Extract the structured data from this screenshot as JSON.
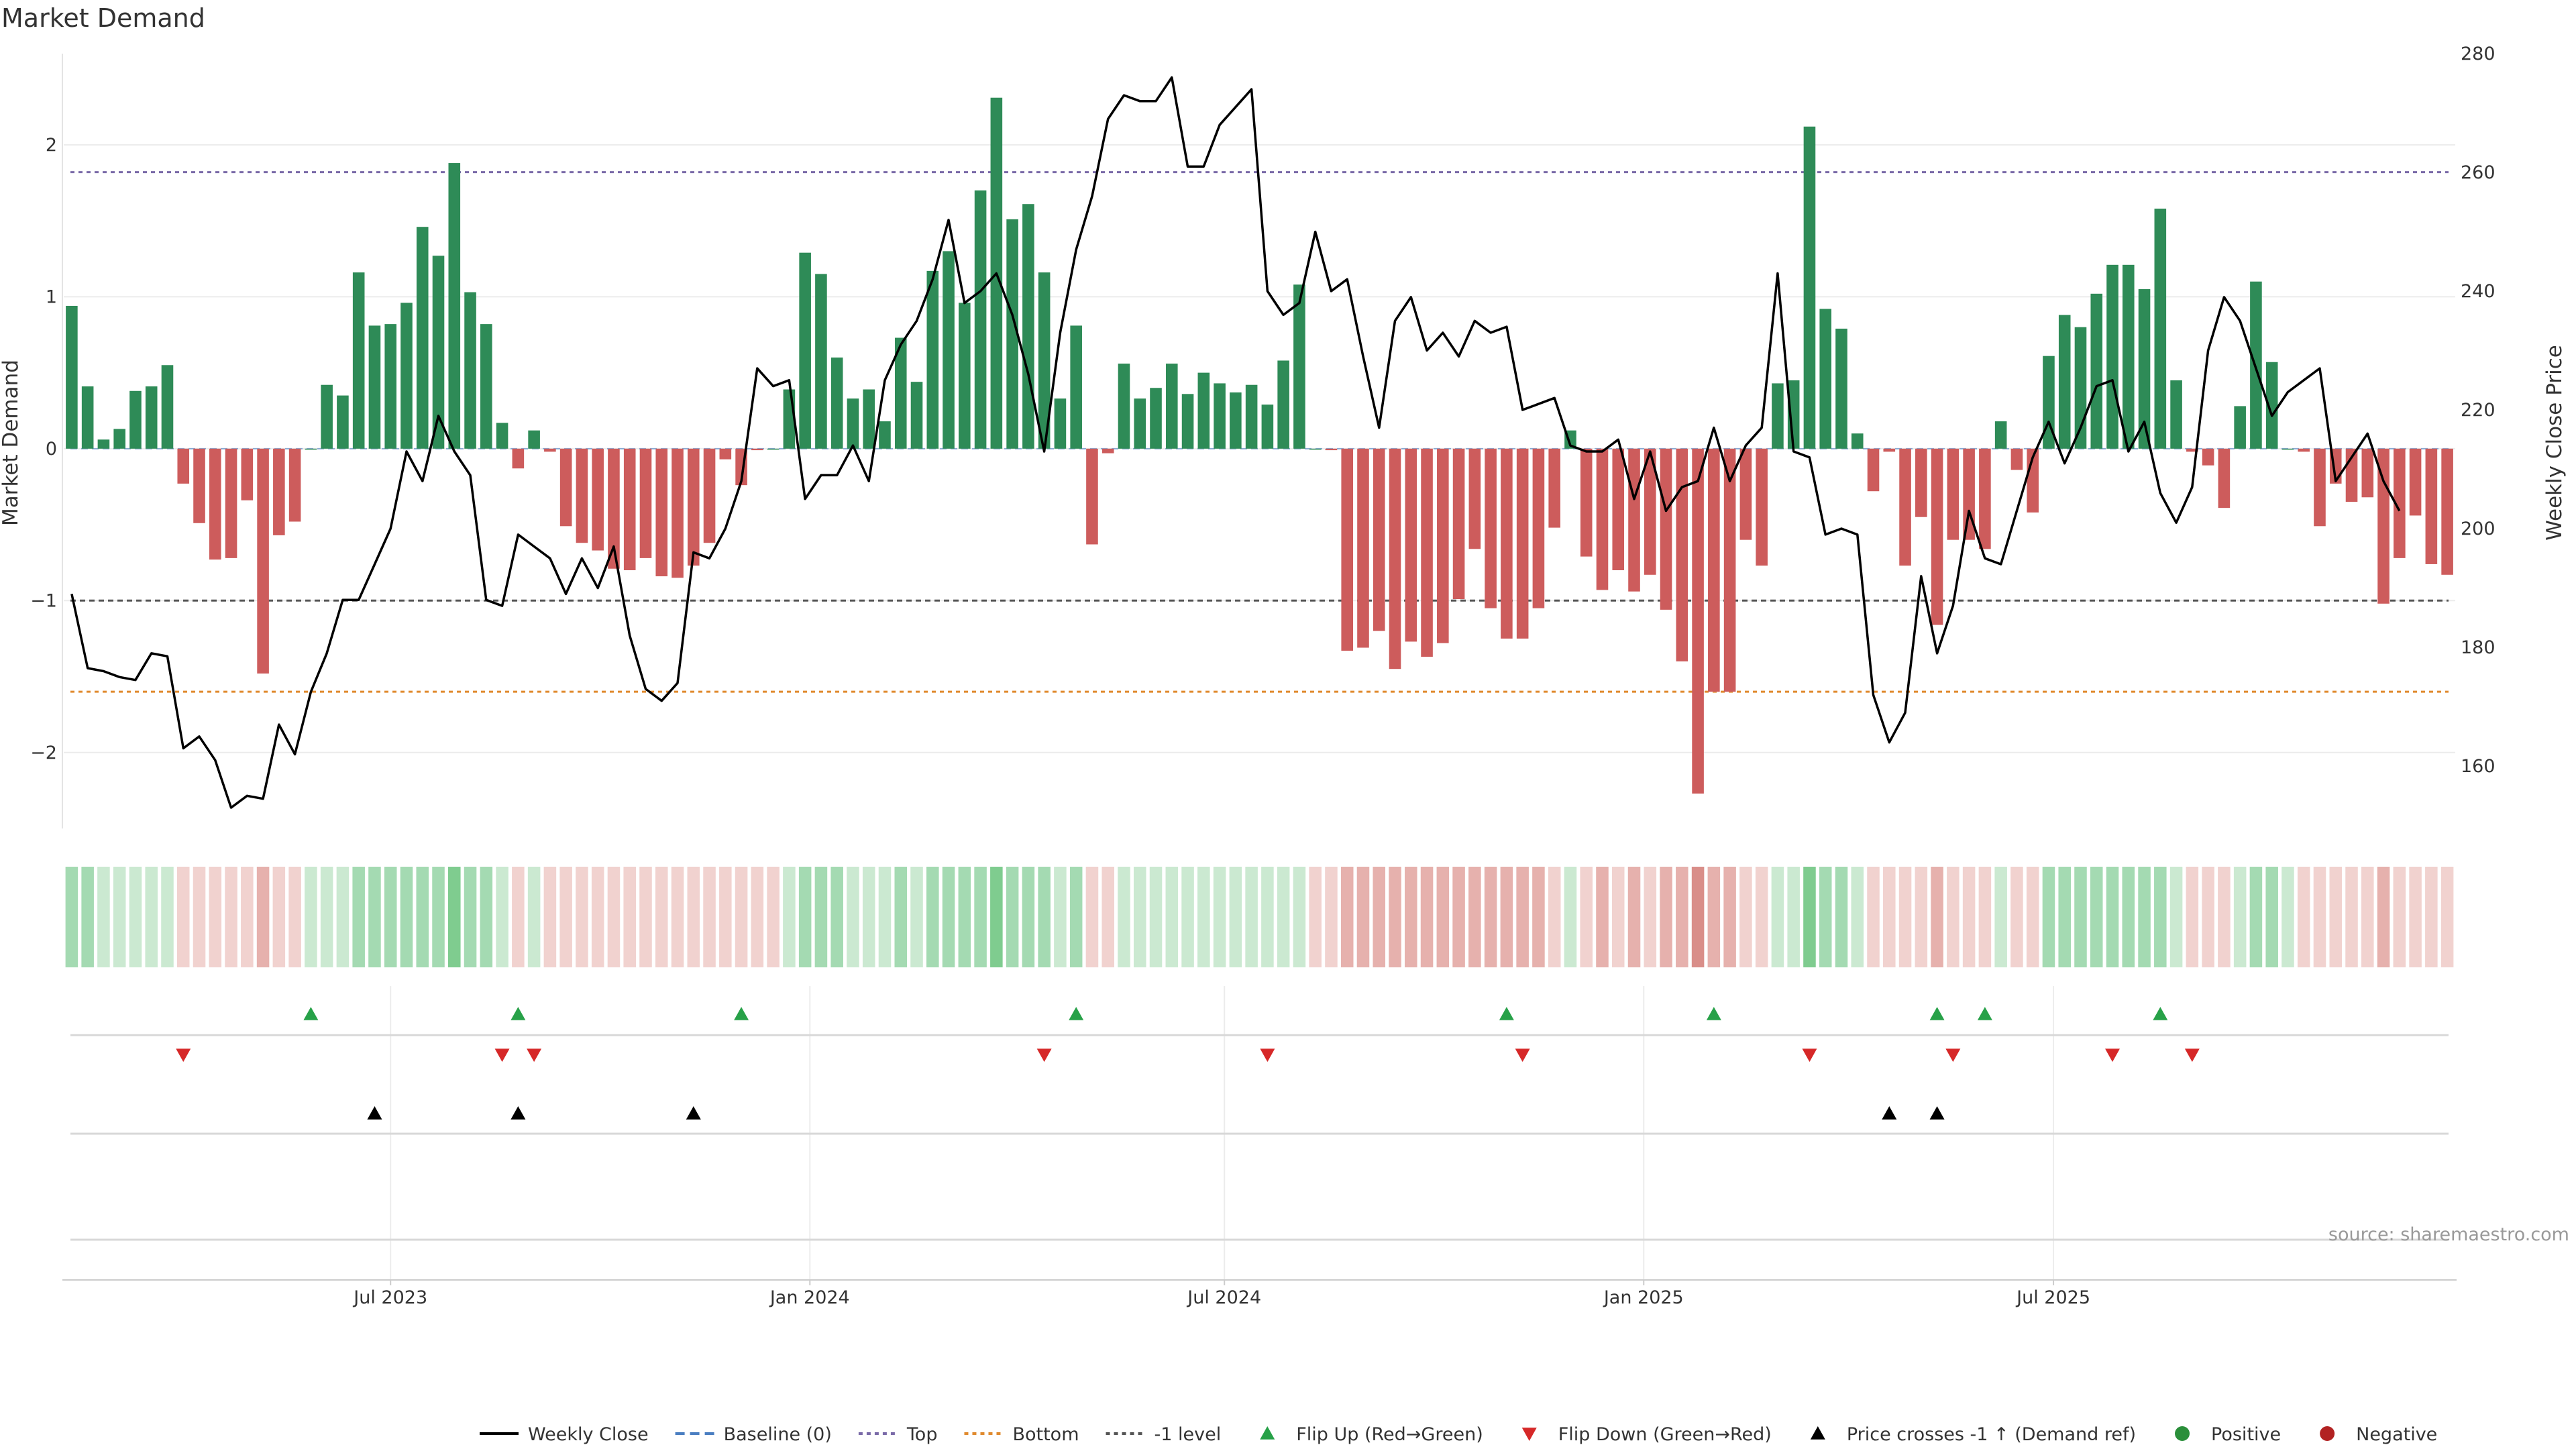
{
  "chart_data": {
    "type": "bar",
    "title": "Market Demand",
    "ylabel": "Market Demand",
    "y2label": "Weekly Close Price",
    "ylim": [
      -2.5,
      2.6
    ],
    "y2lim": [
      149.5,
      280
    ],
    "yticks": [
      2,
      1,
      0,
      -1,
      -2
    ],
    "ytick_labels": [
      "2",
      "1",
      "0",
      "−1",
      "−2"
    ],
    "y2ticks": [
      280,
      260,
      240,
      220,
      200,
      180,
      160
    ],
    "y2tick_labels": [
      "280",
      "260",
      "240",
      "220",
      "200",
      "180",
      "160"
    ],
    "x_tick_labels": [
      "Jul 2023",
      "Jan 2024",
      "Jul 2024",
      "Jan 2025",
      "Jul 2025"
    ],
    "x_tick_index": [
      20.5,
      46.8,
      72.8,
      99.1,
      124.8
    ],
    "reference_lines": {
      "top": 1.82,
      "bottom": -1.6,
      "minus_one": -1.0,
      "baseline": 0
    },
    "demand": [
      0.94,
      0.41,
      0.06,
      0.13,
      0.38,
      0.41,
      0.55,
      -0.23,
      -0.49,
      -0.73,
      -0.72,
      -0.34,
      -1.48,
      -0.57,
      -0.48,
      0.0,
      0.42,
      0.35,
      1.16,
      0.81,
      0.82,
      0.96,
      1.46,
      1.27,
      1.88,
      1.03,
      0.82,
      0.17,
      -0.13,
      0.12,
      -0.02,
      -0.51,
      -0.62,
      -0.67,
      -0.79,
      -0.8,
      -0.72,
      -0.84,
      -0.85,
      -0.77,
      -0.62,
      -0.07,
      -0.24,
      -0.01,
      0.0,
      0.39,
      1.29,
      1.15,
      0.6,
      0.33,
      0.39,
      0.18,
      0.73,
      0.44,
      1.17,
      1.3,
      0.96,
      1.7,
      2.31,
      1.51,
      1.61,
      1.16,
      0.33,
      0.81,
      -0.63,
      -0.03,
      0.56,
      0.33,
      0.4,
      0.56,
      0.36,
      0.5,
      0.43,
      0.37,
      0.42,
      0.29,
      0.58,
      1.08,
      0.0,
      -0.01,
      -1.33,
      -1.31,
      -1.2,
      -1.45,
      -1.27,
      -1.37,
      -1.28,
      -0.99,
      -0.66,
      -1.05,
      -1.25,
      -1.25,
      -1.05,
      -0.52,
      0.12,
      -0.71,
      -0.93,
      -0.8,
      -0.94,
      -0.83,
      -1.06,
      -1.4,
      -2.27,
      -1.6,
      -1.6,
      -0.6,
      -0.77,
      0.43,
      0.45,
      2.12,
      0.92,
      0.79,
      0.1,
      -0.28,
      -0.02,
      -0.77,
      -0.45,
      -1.16,
      -0.6,
      -0.6,
      -0.66,
      0.18,
      -0.14,
      -0.42,
      0.61,
      0.88,
      0.8,
      1.02,
      1.21,
      1.21,
      1.05,
      1.58,
      0.45,
      -0.02,
      -0.11,
      -0.39,
      0.28,
      1.1,
      0.57,
      0.0,
      -0.02,
      -0.51,
      -0.23,
      -0.35,
      -0.32,
      -1.02,
      -0.72,
      -0.44,
      -0.76,
      -0.83
    ],
    "series": [
      {
        "name": "Weekly Close",
        "axis": "right",
        "values": [
          189,
          176.5,
          176,
          175,
          174.5,
          179,
          178.5,
          163,
          165,
          161,
          153,
          155,
          154.5,
          167,
          162,
          172.5,
          179,
          188,
          188,
          194,
          200,
          213,
          208,
          219,
          213,
          209,
          188,
          187,
          199,
          197,
          195,
          189,
          195,
          190,
          197,
          182,
          173,
          171,
          174,
          196,
          195,
          200,
          208,
          227,
          224,
          225,
          205,
          209,
          209,
          214,
          208,
          225,
          231,
          235,
          242,
          252,
          238,
          240,
          243,
          236,
          226,
          213,
          233,
          247,
          256,
          269,
          273,
          272,
          272,
          276,
          261,
          261,
          268,
          271,
          274,
          240,
          236,
          238,
          250,
          240,
          242,
          229,
          217,
          235,
          239,
          230,
          233,
          229,
          235,
          233,
          234,
          220,
          221,
          222,
          214,
          213,
          213,
          215,
          205,
          213,
          203,
          207,
          208,
          217,
          208,
          214,
          217,
          243,
          213,
          212,
          199,
          200,
          199,
          172,
          164,
          169,
          192,
          179,
          187,
          203,
          195,
          194,
          203,
          212,
          218,
          211,
          217,
          224,
          225,
          213,
          218,
          206,
          201,
          207,
          230,
          239,
          235,
          227,
          219,
          223,
          225,
          227,
          208,
          212,
          216,
          208,
          203
        ],
        "color": "#000000"
      }
    ],
    "heat_levels": [
      2,
      2,
      1,
      1,
      1,
      1,
      1,
      -1,
      -1,
      -1,
      -1,
      -1,
      -2,
      -1,
      -1,
      1,
      1,
      1,
      2,
      2,
      2,
      2,
      2,
      2,
      3,
      2,
      2,
      1,
      -1,
      1,
      -1,
      -1,
      -1,
      -1,
      -1,
      -1,
      -1,
      -1,
      -1,
      -1,
      -1,
      -1,
      -1,
      -1,
      -1,
      1,
      2,
      2,
      2,
      1,
      1,
      1,
      2,
      1,
      2,
      2,
      2,
      2,
      3,
      2,
      2,
      2,
      1,
      2,
      -1,
      -1,
      1,
      1,
      1,
      1,
      1,
      1,
      1,
      1,
      1,
      1,
      1,
      1,
      -1,
      -1,
      -2,
      -2,
      -2,
      -2,
      -2,
      -2,
      -2,
      -2,
      -2,
      -2,
      -2,
      -2,
      -2,
      -1,
      1,
      -1,
      -2,
      -1,
      -2,
      -1,
      -2,
      -2,
      -3,
      -2,
      -2,
      -1,
      -1,
      1,
      1,
      3,
      2,
      2,
      1,
      -1,
      -1,
      -1,
      -1,
      -2,
      -1,
      -1,
      -1,
      1,
      -1,
      -1,
      2,
      2,
      2,
      2,
      2,
      2,
      2,
      2,
      1,
      -1,
      -1,
      -1,
      1,
      2,
      2,
      1,
      -1,
      -1,
      -1,
      -1,
      -1,
      -2,
      -1,
      -1,
      -1,
      -1
    ],
    "flip_up": [
      15.5,
      28.5,
      42.5,
      63.5,
      90.5,
      103.5,
      117.5,
      120.5,
      131.5
    ],
    "flip_down": [
      7.5,
      27.5,
      29.5,
      61.5,
      75.5,
      91.5,
      109.5,
      118.5,
      128.5,
      133.5
    ],
    "price_cross_up": [
      19.5,
      28.5,
      39.5,
      114.5,
      117.5
    ],
    "legend": [
      {
        "label": "Weekly Close",
        "symbol": "line",
        "color": "#000000"
      },
      {
        "label": "Baseline (0)",
        "symbol": "dashed",
        "color": "#4a7ec1"
      },
      {
        "label": "Top",
        "symbol": "dotted",
        "color": "#7a6aa8"
      },
      {
        "label": "Bottom",
        "symbol": "dotted",
        "color": "#e08a2e"
      },
      {
        "label": "-1 level",
        "symbol": "dotted",
        "color": "#555555"
      },
      {
        "label": "Flip Up (Red→Green)",
        "symbol": "triangle-up",
        "color": "#27a148"
      },
      {
        "label": "Flip Down (Green→Red)",
        "symbol": "triangle-down",
        "color": "#d62828"
      },
      {
        "label": "Price crosses -1 ↑ (Demand ref)",
        "symbol": "triangle-up",
        "color": "#000000"
      },
      {
        "label": "Positive",
        "symbol": "dot",
        "color": "#2a8f3a"
      },
      {
        "label": "Negative",
        "symbol": "dot",
        "color": "#b22222"
      }
    ],
    "source": "source: sharemaestro.com"
  },
  "colors": {
    "positive_bar": "#2e8b57",
    "negative_bar": "#cd5c5c",
    "heat_positive": [
      "#cbe9d1",
      "#a4dab2",
      "#7fcc8f",
      "#3ead52"
    ],
    "heat_negative": [
      "#f1d2cf",
      "#e6b1ad",
      "#d98e89",
      "#c26660"
    ],
    "grid": "#ececec"
  }
}
